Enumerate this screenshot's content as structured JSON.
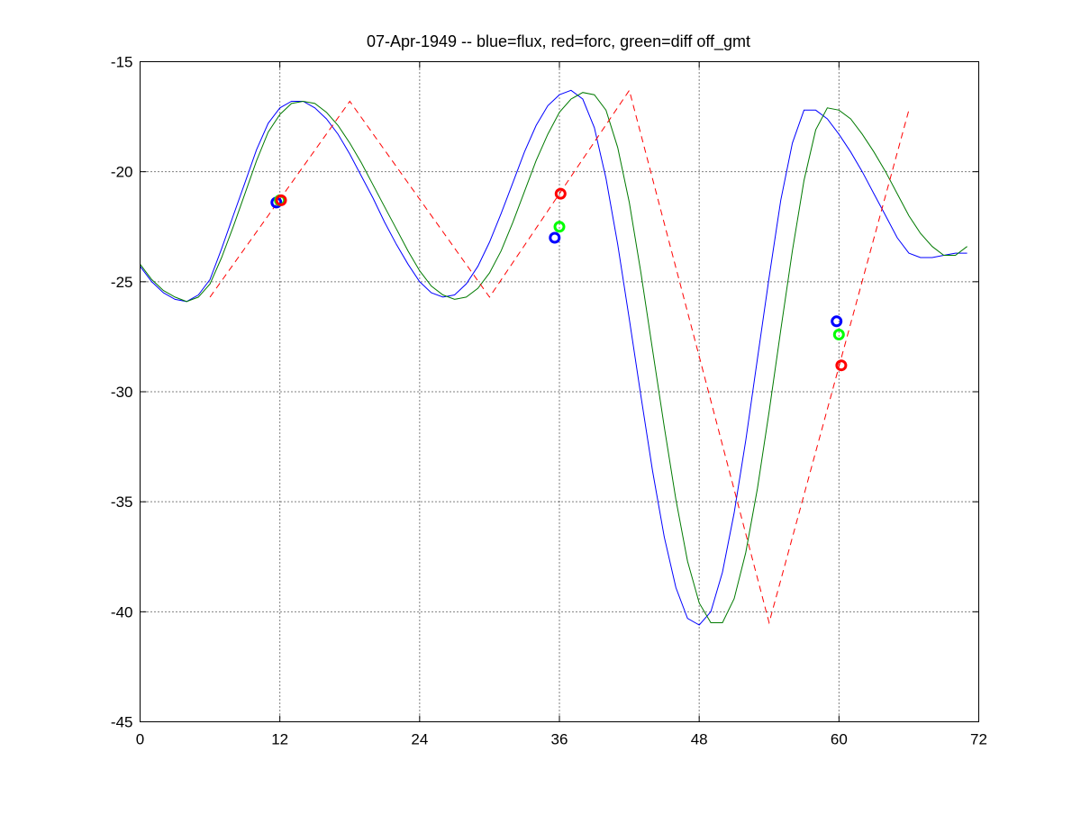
{
  "chart_data": {
    "type": "line",
    "title": "07-Apr-1949 -- blue=flux, red=forc, green=diff off_gmt",
    "xlabel": "",
    "ylabel": "",
    "xlim": [
      0,
      72
    ],
    "ylim": [
      -45,
      -15
    ],
    "xticks": [
      0,
      12,
      24,
      36,
      48,
      60,
      72
    ],
    "yticks": [
      -15,
      -20,
      -25,
      -30,
      -35,
      -40,
      -45
    ],
    "xtick_labels": [
      "0",
      "12",
      "24",
      "36",
      "48",
      "60",
      "72"
    ],
    "ytick_labels": [
      "-15",
      "-20",
      "-25",
      "-30",
      "-35",
      "-40",
      "-45"
    ],
    "grid": true,
    "colors": {
      "flux": "#0000ff",
      "forc": "#ff0000",
      "diff": "#007a00",
      "marker_green": "#00ff00"
    },
    "series": [
      {
        "key": "flux",
        "color": "#0000ff",
        "style": "solid",
        "x": [
          0,
          1,
          2,
          3,
          4,
          5,
          6,
          7,
          8,
          9,
          10,
          11,
          12,
          13,
          14,
          15,
          16,
          17,
          18,
          19,
          20,
          21,
          22,
          23,
          24,
          25,
          26,
          27,
          28,
          29,
          30,
          31,
          32,
          33,
          34,
          35,
          36,
          37,
          38,
          39,
          40,
          41,
          42,
          43,
          44,
          45,
          46,
          47,
          48,
          49,
          50,
          51,
          52,
          53,
          54,
          55,
          56,
          57,
          58,
          59,
          60,
          61,
          62,
          63,
          64,
          65,
          66,
          67,
          68,
          69,
          70,
          71
        ],
        "y": [
          -24.3,
          -25.0,
          -25.5,
          -25.8,
          -25.9,
          -25.6,
          -24.9,
          -23.5,
          -22.0,
          -20.5,
          -19.0,
          -17.8,
          -17.1,
          -16.8,
          -16.8,
          -17.1,
          -17.6,
          -18.3,
          -19.2,
          -20.2,
          -21.2,
          -22.3,
          -23.3,
          -24.2,
          -25.0,
          -25.5,
          -25.7,
          -25.6,
          -25.1,
          -24.3,
          -23.2,
          -21.9,
          -20.5,
          -19.1,
          -17.9,
          -17.0,
          -16.5,
          -16.3,
          -16.7,
          -18.0,
          -20.3,
          -23.3,
          -26.7,
          -30.2,
          -33.6,
          -36.6,
          -38.9,
          -40.3,
          -40.6,
          -40.0,
          -38.2,
          -35.5,
          -32.2,
          -28.5,
          -24.8,
          -21.3,
          -18.7,
          -17.2,
          -17.2,
          -17.6,
          -18.3,
          -19.1,
          -20.0,
          -21.0,
          -22.0,
          -23.0,
          -23.7,
          -23.9,
          -23.9,
          -23.8,
          -23.7,
          -23.7
        ]
      },
      {
        "key": "diff",
        "color": "#007a00",
        "style": "solid",
        "x": [
          0,
          1,
          2,
          3,
          4,
          5,
          6,
          7,
          8,
          9,
          10,
          11,
          12,
          13,
          14,
          15,
          16,
          17,
          18,
          19,
          20,
          21,
          22,
          23,
          24,
          25,
          26,
          27,
          28,
          29,
          30,
          31,
          32,
          33,
          34,
          35,
          36,
          37,
          38,
          39,
          40,
          41,
          42,
          43,
          44,
          45,
          46,
          47,
          48,
          49,
          50,
          51,
          52,
          53,
          54,
          55,
          56,
          57,
          58,
          59,
          60,
          61,
          62,
          63,
          64,
          65,
          66,
          67,
          68,
          69,
          70,
          71
        ],
        "y": [
          -24.2,
          -24.9,
          -25.4,
          -25.7,
          -25.9,
          -25.7,
          -25.1,
          -23.9,
          -22.5,
          -21.0,
          -19.5,
          -18.2,
          -17.4,
          -16.9,
          -16.8,
          -16.9,
          -17.3,
          -17.9,
          -18.7,
          -19.6,
          -20.6,
          -21.6,
          -22.6,
          -23.6,
          -24.5,
          -25.2,
          -25.6,
          -25.8,
          -25.7,
          -25.3,
          -24.6,
          -23.6,
          -22.3,
          -20.9,
          -19.5,
          -18.3,
          -17.3,
          -16.7,
          -16.4,
          -16.5,
          -17.2,
          -18.9,
          -21.4,
          -24.6,
          -28.1,
          -31.6,
          -34.9,
          -37.7,
          -39.6,
          -40.5,
          -40.5,
          -39.4,
          -37.3,
          -34.4,
          -30.9,
          -27.2,
          -23.6,
          -20.4,
          -18.1,
          -17.1,
          -17.2,
          -17.6,
          -18.3,
          -19.1,
          -20.0,
          -21.0,
          -22.0,
          -22.8,
          -23.4,
          -23.8,
          -23.8,
          -23.4
        ]
      },
      {
        "key": "forc",
        "color": "#ff0000",
        "style": "dashed",
        "x": [
          6,
          18,
          30,
          42,
          54,
          66
        ],
        "y": [
          -25.7,
          -16.8,
          -25.7,
          -16.3,
          -40.5,
          -17.2
        ]
      }
    ],
    "markers": [
      {
        "color": "#0000ff",
        "x": 11.7,
        "y": -21.4
      },
      {
        "color": "#00ff00",
        "x": 12.0,
        "y": -21.3
      },
      {
        "color": "#ff0000",
        "x": 12.1,
        "y": -21.3
      },
      {
        "color": "#ff0000",
        "x": 36.1,
        "y": -21.0
      },
      {
        "color": "#00ff00",
        "x": 36.0,
        "y": -22.5
      },
      {
        "color": "#0000ff",
        "x": 35.6,
        "y": -23.0
      },
      {
        "color": "#0000ff",
        "x": 59.8,
        "y": -26.8
      },
      {
        "color": "#00ff00",
        "x": 60.0,
        "y": -27.4
      },
      {
        "color": "#ff0000",
        "x": 60.2,
        "y": -28.8
      }
    ]
  }
}
